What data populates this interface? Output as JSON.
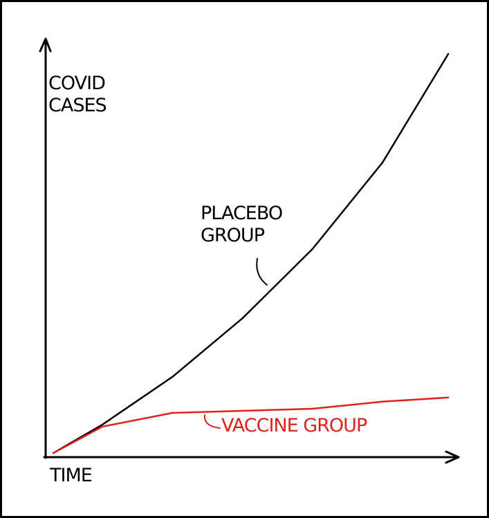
{
  "chart_data": {
    "type": "line",
    "x_label": "TIME",
    "y_label": "COVID CASES",
    "x": [
      2,
      14,
      31,
      48,
      65,
      82,
      98
    ],
    "xlim": [
      0,
      100
    ],
    "ylim": [
      0,
      100
    ],
    "series": [
      {
        "name": "PLACEBO GROUP",
        "color": "#000000",
        "values": [
          0.8,
          7.7,
          19.2,
          33.3,
          50,
          70.8,
          97
        ]
      },
      {
        "name": "VACCINE GROUP",
        "color": "#e0201b",
        "values": [
          0.8,
          7.2,
          10.5,
          11,
          11.5,
          13.2,
          14.2
        ]
      }
    ]
  }
}
